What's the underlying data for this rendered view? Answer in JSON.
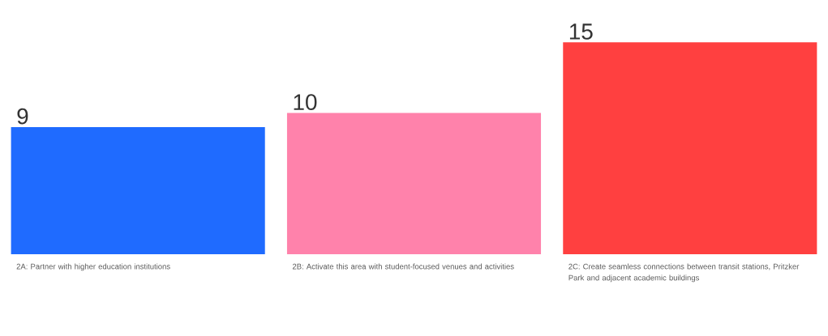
{
  "chart_data": {
    "type": "bar",
    "categories": [
      "2A: Partner with higher education institutions",
      "2B: Activate this area with student-focused venues and activities",
      "2C: Create seamless connections between transit stations, Pritzker Park and adjacent academic buildings"
    ],
    "values": [
      9,
      10,
      15
    ],
    "colors": [
      "#1f6bff",
      "#ff82ab",
      "#ff4040"
    ],
    "data_labels": true
  }
}
